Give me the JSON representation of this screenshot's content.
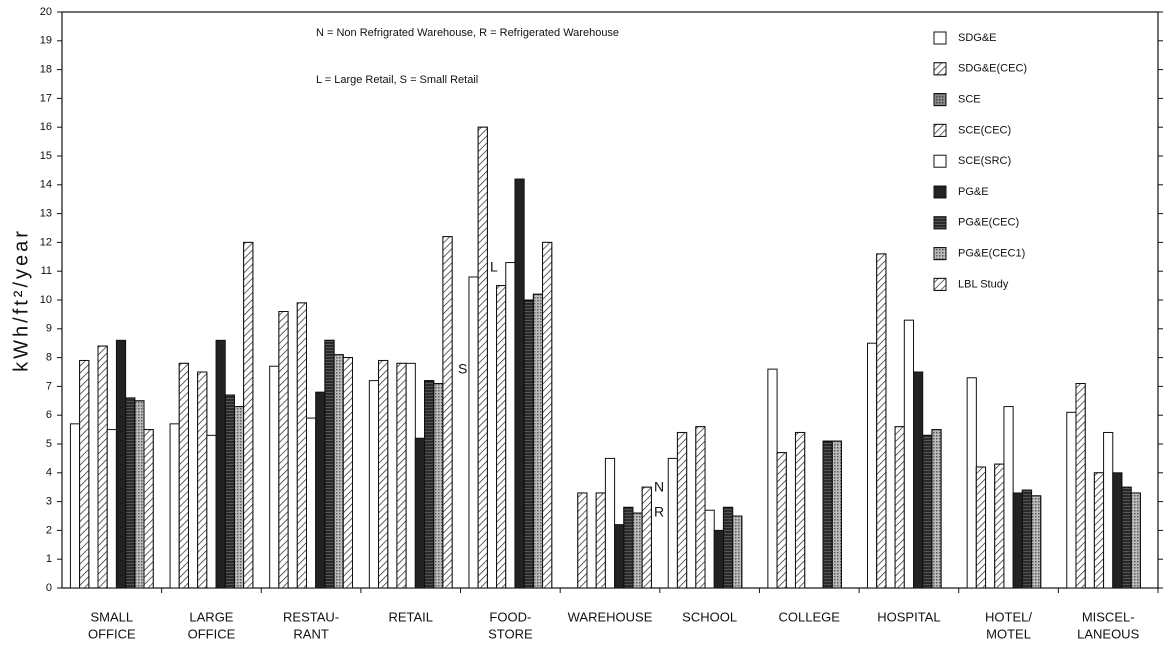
{
  "chart_data": {
    "type": "bar",
    "ylabel": "kWh/ft²/year",
    "annotations": [
      "N = Non Refrigrated Warehouse,  R = Refrigerated Warehouse",
      "L = Large Retail, S = Small Retail",
      "L",
      "S",
      "N",
      "R"
    ],
    "categories": [
      [
        "SMALL",
        "OFFICE"
      ],
      [
        "LARGE",
        "OFFICE"
      ],
      [
        "RESTAU-",
        "RANT"
      ],
      [
        "RETAIL"
      ],
      [
        "FOOD-",
        "STORE"
      ],
      [
        "WAREHOUSE"
      ],
      [
        "SCHOOL"
      ],
      [
        "COLLEGE"
      ],
      [
        "HOSPITAL"
      ],
      [
        "HOTEL/",
        "MOTEL"
      ],
      [
        "MISCEL-",
        "LANEOUS"
      ]
    ],
    "series": [
      {
        "name": "SDG&E",
        "color": "#ffffff",
        "pattern": "none",
        "values": [
          5.7,
          5.7,
          7.7,
          7.2,
          10.8,
          null,
          4.5,
          7.6,
          8.5,
          7.3,
          6.1
        ]
      },
      {
        "name": "SDG&E(CEC)",
        "color": "#ffffff",
        "pattern": "hatch",
        "values": [
          7.9,
          7.8,
          9.6,
          7.9,
          16.0,
          3.3,
          5.4,
          4.7,
          11.6,
          4.2,
          7.1
        ]
      },
      {
        "name": "SCE",
        "color": "#888888",
        "pattern": "dots",
        "values": [
          null,
          null,
          null,
          null,
          null,
          null,
          null,
          null,
          null,
          null,
          null
        ]
      },
      {
        "name": "SCE(CEC)",
        "color": "#ffffff",
        "pattern": "hatch",
        "values": [
          8.4,
          7.5,
          9.9,
          7.8,
          10.5,
          3.3,
          5.6,
          5.4,
          5.6,
          4.3,
          4.0
        ]
      },
      {
        "name": "SCE(SRC)",
        "color": "#ffffff",
        "pattern": "none",
        "values": [
          5.5,
          5.3,
          5.9,
          7.8,
          11.3,
          4.5,
          2.7,
          null,
          9.3,
          6.3,
          5.4
        ]
      },
      {
        "name": "PG&E",
        "color": "#222222",
        "pattern": "none",
        "values": [
          8.6,
          8.6,
          6.8,
          5.2,
          14.2,
          2.2,
          2.0,
          null,
          7.5,
          3.3,
          4.0
        ]
      },
      {
        "name": "PG&E(CEC)",
        "color": "#555555",
        "pattern": "lines",
        "values": [
          6.6,
          6.7,
          8.6,
          7.2,
          10.0,
          2.8,
          2.8,
          5.1,
          5.3,
          3.4,
          3.5
        ]
      },
      {
        "name": "PG&E(CEC1)",
        "color": "#bbbbbb",
        "pattern": "dots",
        "values": [
          6.5,
          6.3,
          8.1,
          7.1,
          10.2,
          2.6,
          2.5,
          5.1,
          5.5,
          3.2,
          3.3
        ]
      },
      {
        "name": "LBL Study",
        "color": "#ffffff",
        "pattern": "hatch",
        "values": [
          5.5,
          12.0,
          8.0,
          12.2,
          12.0,
          3.5,
          null,
          null,
          null,
          null,
          null
        ]
      }
    ],
    "ylim": [
      0,
      20
    ],
    "yticks": [
      0,
      1,
      2,
      3,
      4,
      5,
      6,
      7,
      8,
      9,
      10,
      11,
      12,
      13,
      14,
      15,
      16,
      17,
      18,
      19,
      20
    ]
  }
}
